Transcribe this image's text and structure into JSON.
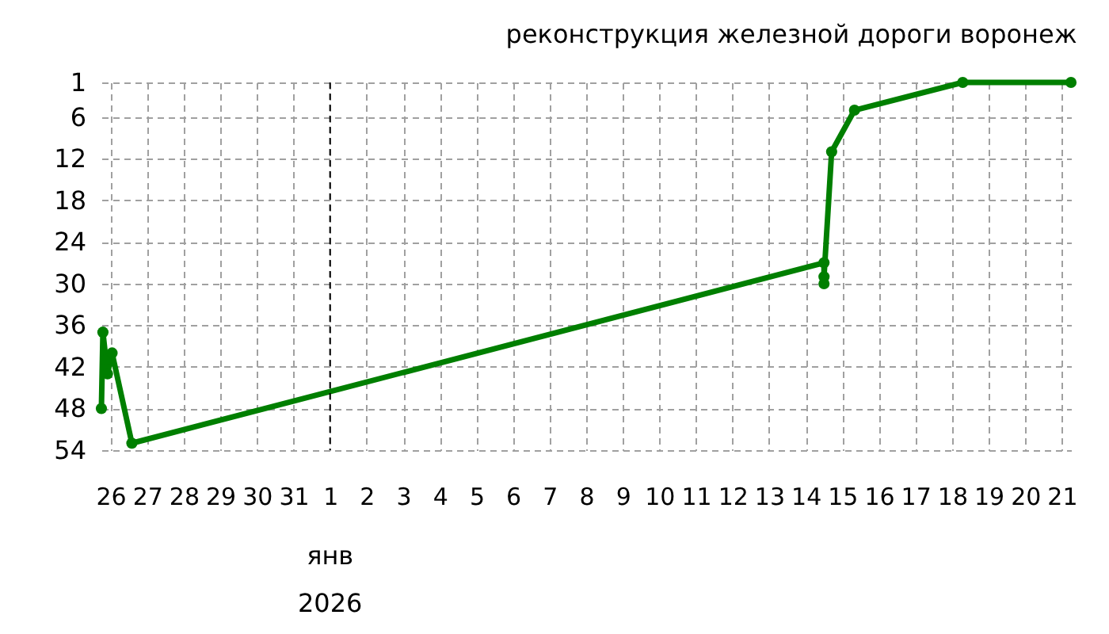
{
  "chart_data": {
    "type": "line",
    "title": "реконструкция железной дороги воронеж",
    "x": [
      "2025-12-25T18:00",
      "2025-12-25T19:00",
      "2025-12-25T21:00",
      "2025-12-25T22:00",
      "2025-12-26T01:00",
      "2025-12-26T14:00",
      "2026-01-14T12:00",
      "2026-01-14T12:00",
      "2026-01-14T12:00",
      "2026-01-14T17:00",
      "2026-01-15T08:00",
      "2026-01-18T07:00",
      "2026-01-21T06:00"
    ],
    "series": [
      {
        "color": "#007f00",
        "values": [
          48,
          37,
          41,
          43,
          40,
          53,
          27,
          30,
          29,
          11,
          5,
          1,
          1
        ]
      }
    ],
    "xlim": [
      "2025-12-25T18:00",
      "2026-01-21T06:00"
    ],
    "xticks": [
      {
        "value": "2025-12-26",
        "label": "26"
      },
      {
        "value": "2025-12-27",
        "label": "27"
      },
      {
        "value": "2025-12-28",
        "label": "28"
      },
      {
        "value": "2025-12-29",
        "label": "29"
      },
      {
        "value": "2025-12-30",
        "label": "30"
      },
      {
        "value": "2025-12-31",
        "label": "31"
      },
      {
        "value": "2026-01-01",
        "label": "1"
      },
      {
        "value": "2026-01-02",
        "label": "2"
      },
      {
        "value": "2026-01-03",
        "label": "3"
      },
      {
        "value": "2026-01-04",
        "label": "4"
      },
      {
        "value": "2026-01-05",
        "label": "5"
      },
      {
        "value": "2026-01-06",
        "label": "6"
      },
      {
        "value": "2026-01-07",
        "label": "7"
      },
      {
        "value": "2026-01-08",
        "label": "8"
      },
      {
        "value": "2026-01-09",
        "label": "9"
      },
      {
        "value": "2026-01-10",
        "label": "10"
      },
      {
        "value": "2026-01-11",
        "label": "11"
      },
      {
        "value": "2026-01-12",
        "label": "12"
      },
      {
        "value": "2026-01-13",
        "label": "13"
      },
      {
        "value": "2026-01-14",
        "label": "14"
      },
      {
        "value": "2026-01-15",
        "label": "15"
      },
      {
        "value": "2026-01-16",
        "label": "16"
      },
      {
        "value": "2026-01-17",
        "label": "17"
      },
      {
        "value": "2026-01-18",
        "label": "18"
      },
      {
        "value": "2026-01-19",
        "label": "19"
      },
      {
        "value": "2026-01-20",
        "label": "20"
      },
      {
        "value": "2026-01-21",
        "label": "21"
      }
    ],
    "ylim": [
      54,
      1
    ],
    "yticks": [
      1,
      6,
      12,
      18,
      24,
      30,
      36,
      42,
      48,
      54
    ],
    "annotations": [
      "янв",
      "2026"
    ],
    "ref_lines": [
      {
        "axis": "x",
        "value": "2026-01-01",
        "color": "#000000",
        "line_style": "dashed"
      }
    ],
    "grid": true,
    "marker": "circle",
    "line_style": "solid"
  }
}
